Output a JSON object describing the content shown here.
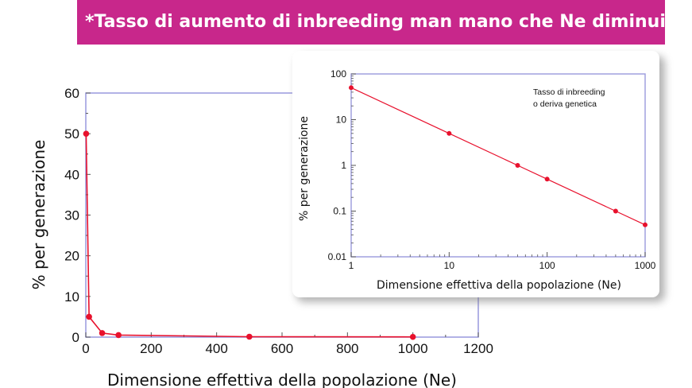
{
  "banner": {
    "title": "*Tasso di aumento di inbreeding man mano che Ne diminuisce"
  },
  "colors": {
    "banner": "#c8278b",
    "frame": "#9999dd",
    "series": "#e8112d"
  },
  "chart_data": [
    {
      "type": "line",
      "scale": "linear",
      "x": [
        1,
        10,
        50,
        100,
        500,
        1000
      ],
      "y": [
        50,
        5,
        1,
        0.5,
        0.1,
        0.05
      ],
      "xlim": [
        0,
        1200
      ],
      "ylim": [
        0,
        60
      ],
      "xticks": [
        "0",
        "200",
        "400",
        "600",
        "800",
        "1000",
        "1200"
      ],
      "yticks": [
        "0",
        "10",
        "20",
        "30",
        "40",
        "50",
        "60"
      ],
      "xlabel": "Dimensione effettiva della popolazione (Ne)",
      "ylabel": "% per generazione",
      "grid": false
    },
    {
      "type": "line",
      "scale": "log-log",
      "x": [
        1,
        10,
        50,
        100,
        500,
        1000
      ],
      "y": [
        50,
        5,
        1,
        0.5,
        0.1,
        0.05
      ],
      "xlim": [
        1,
        1000
      ],
      "ylim": [
        0.01,
        100
      ],
      "xticks": [
        "1",
        "10",
        "100",
        "1000"
      ],
      "yticks": [
        "0.01",
        "0.1",
        "1",
        "10",
        "100"
      ],
      "xlabel": "Dimensione effettiva della popolazione (Ne)",
      "ylabel": "% per generazione",
      "annotation": [
        "Tasso di inbreeding",
        "o deriva genetica"
      ],
      "grid": false
    }
  ]
}
